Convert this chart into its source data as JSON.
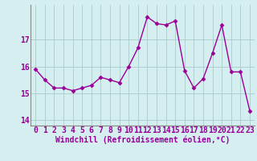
{
  "x": [
    0,
    1,
    2,
    3,
    4,
    5,
    6,
    7,
    8,
    9,
    10,
    11,
    12,
    13,
    14,
    15,
    16,
    17,
    18,
    19,
    20,
    21,
    22,
    23
  ],
  "y": [
    15.9,
    15.5,
    15.2,
    15.2,
    15.1,
    15.2,
    15.3,
    15.6,
    15.5,
    15.4,
    16.0,
    16.7,
    17.85,
    17.6,
    17.55,
    17.7,
    15.85,
    15.2,
    15.55,
    16.5,
    17.55,
    15.8,
    15.8,
    14.35
  ],
  "line_color": "#990099",
  "marker": "D",
  "marker_size": 2.5,
  "bg_color": "#d5eef0",
  "grid_color": "#aacccc",
  "xlabel": "Windchill (Refroidissement éolien,°C)",
  "ylim": [
    13.8,
    18.3
  ],
  "yticks": [
    14,
    15,
    16,
    17
  ],
  "xticks": [
    0,
    1,
    2,
    3,
    4,
    5,
    6,
    7,
    8,
    9,
    10,
    11,
    12,
    13,
    14,
    15,
    16,
    17,
    18,
    19,
    20,
    21,
    22,
    23
  ],
  "axis_label_fontsize": 7,
  "tick_fontsize": 7,
  "line_width": 1.0,
  "spine_color": "#888888"
}
